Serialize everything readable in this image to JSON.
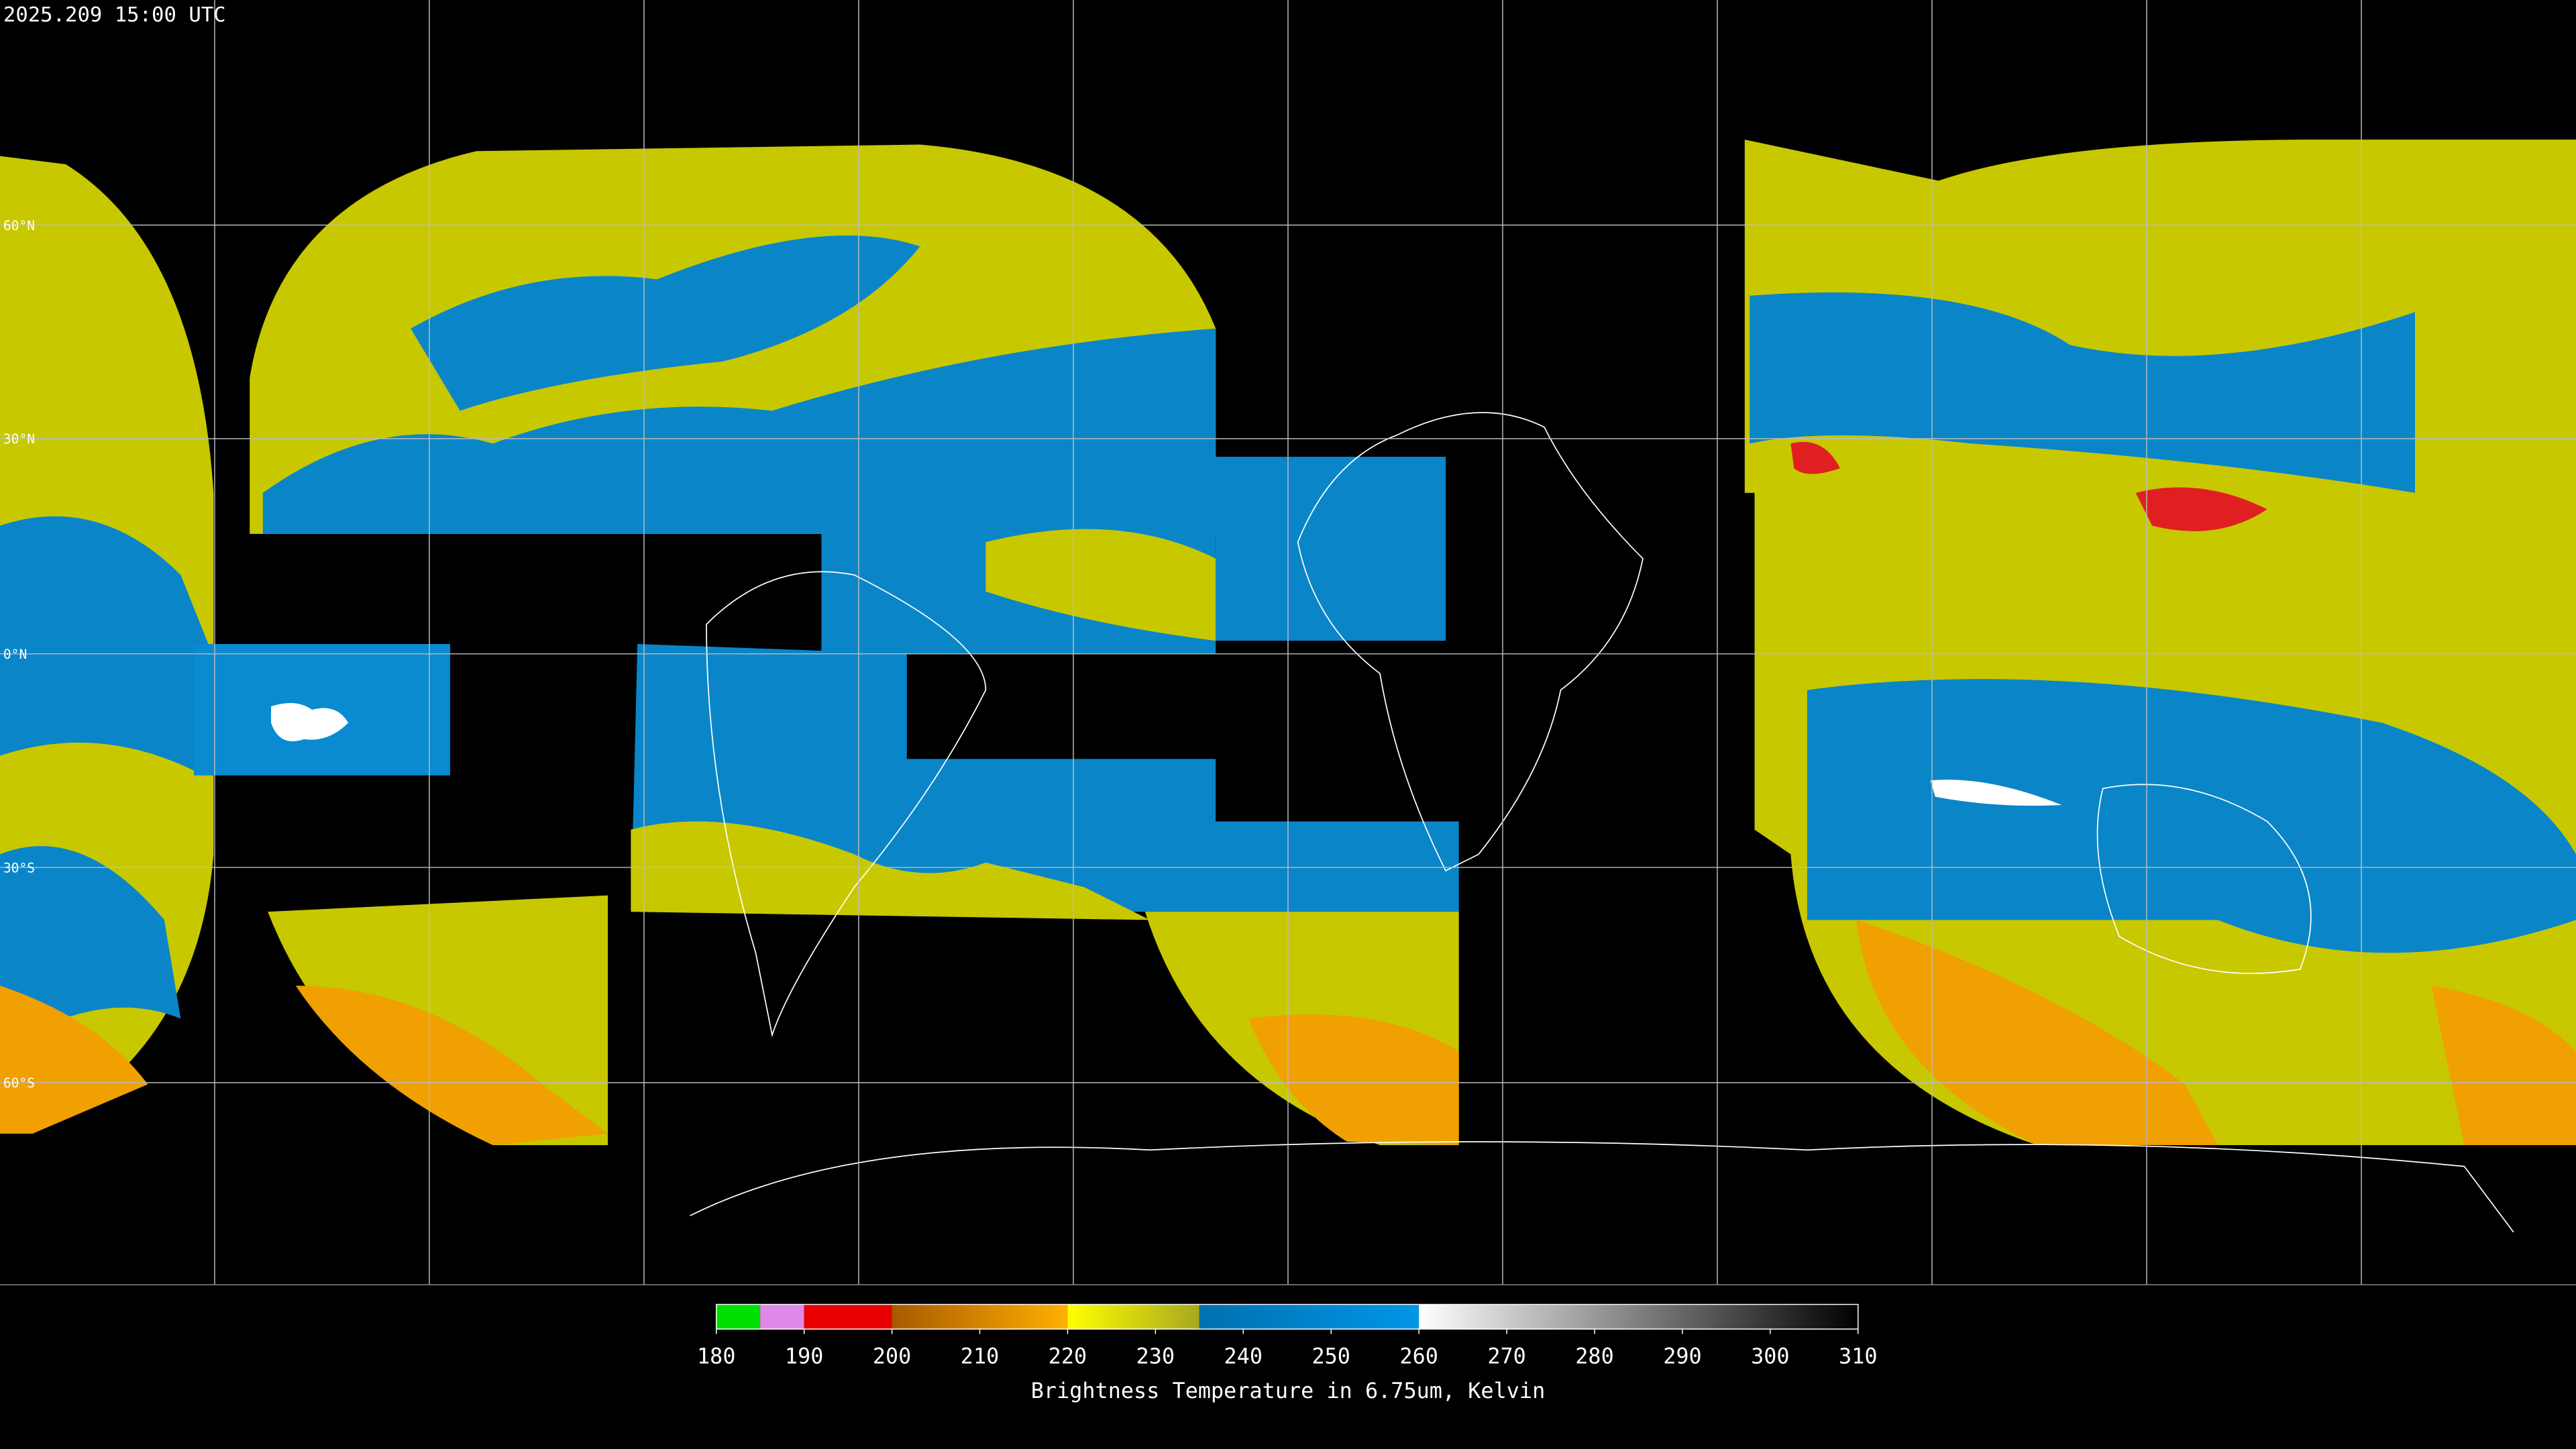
{
  "header": {
    "title": "2025.209 15:00 UTC"
  },
  "map": {
    "latitude_labels": [
      "60°N",
      "30°N",
      "0°N",
      "30°S",
      "60°S"
    ]
  },
  "colorbar": {
    "type": "colorbar",
    "range": [
      180,
      310
    ],
    "ticks": [
      180,
      190,
      200,
      210,
      220,
      230,
      240,
      250,
      260,
      270,
      280,
      290,
      300,
      310
    ],
    "label": "Brightness Temperature in 6.75um, Kelvin",
    "segments": [
      {
        "from": 180,
        "to": 185,
        "colors": [
          "#00e000",
          "#00e000"
        ]
      },
      {
        "from": 185,
        "to": 190,
        "colors": [
          "#e088e8",
          "#e088e8"
        ]
      },
      {
        "from": 190,
        "to": 200,
        "colors": [
          "#e80000",
          "#e80000"
        ]
      },
      {
        "from": 200,
        "to": 220,
        "colors": [
          "#a85a00",
          "#ffb000"
        ]
      },
      {
        "from": 220,
        "to": 235,
        "colors": [
          "#ffff00",
          "#a8a820"
        ]
      },
      {
        "from": 235,
        "to": 260,
        "colors": [
          "#0070b0",
          "#0096e6"
        ]
      },
      {
        "from": 260,
        "to": 310,
        "colors": [
          "#ffffff",
          "#000000"
        ]
      }
    ]
  }
}
